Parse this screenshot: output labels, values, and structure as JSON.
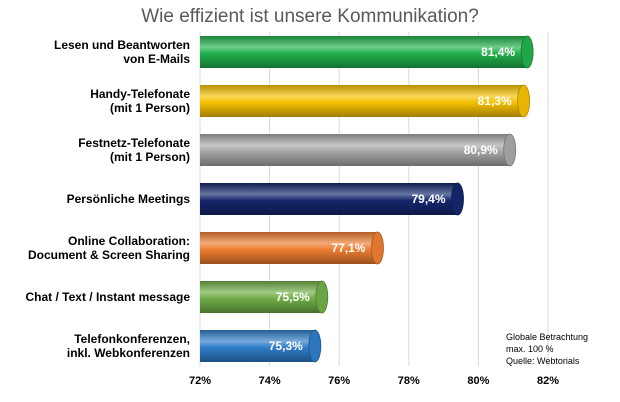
{
  "chart_data": {
    "type": "bar",
    "orientation": "horizontal",
    "title": "Wie effizient ist unsere Kommunikation?",
    "categories": [
      [
        "Lesen und Beantworten",
        "von E-Mails"
      ],
      [
        "Handy-Telefonate",
        "(mit 1 Person)"
      ],
      [
        "Festnetz-Telefonate",
        "(mit 1 Person)"
      ],
      [
        "Persönliche Meetings"
      ],
      [
        "Online Collaboration:",
        "Document & Screen Sharing"
      ],
      [
        "Chat / Text / Instant message"
      ],
      [
        "Telefonkonferenzen,",
        "inkl. Webkonferenzen"
      ]
    ],
    "values": [
      81.4,
      81.3,
      80.9,
      79.4,
      77.1,
      75.5,
      75.3
    ],
    "value_labels": [
      "81,4%",
      "81,3%",
      "80,9%",
      "79,4%",
      "77,1%",
      "75,5%",
      "75,3%"
    ],
    "colors": [
      "#21b04b",
      "#f4c000",
      "#a6a6a6",
      "#14276b",
      "#ed7d31",
      "#70ad47",
      "#2e7cc8"
    ],
    "xlim": [
      72,
      82
    ],
    "x_ticks": [
      72,
      74,
      76,
      78,
      80,
      82
    ],
    "x_tick_labels": [
      "72%",
      "74%",
      "76%",
      "78%",
      "80%",
      "82%"
    ],
    "grid": true,
    "legend": "none"
  },
  "note": {
    "lines": [
      "Globale Betrachtung",
      "max. 100 %",
      "Quelle: Webtorials"
    ]
  }
}
